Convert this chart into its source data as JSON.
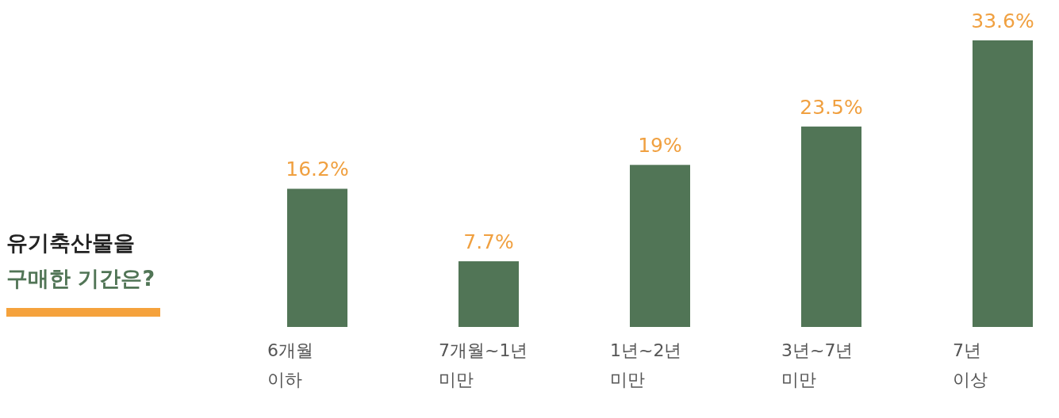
{
  "chart_data": {
    "type": "bar",
    "title": "유기축산물을",
    "subtitle": "구매한 기간은?",
    "categories": [
      "6개월\n이하",
      "7개월~1년\n미만",
      "1년~2년\n미만",
      "3년~7년\n미만",
      "7년\n이상"
    ],
    "values": [
      16.2,
      7.7,
      19,
      23.5,
      33.6
    ],
    "value_labels": [
      "16.2%",
      "7.7%",
      "19%",
      "23.5%",
      "33.6%"
    ],
    "color": "#517556"
  }
}
